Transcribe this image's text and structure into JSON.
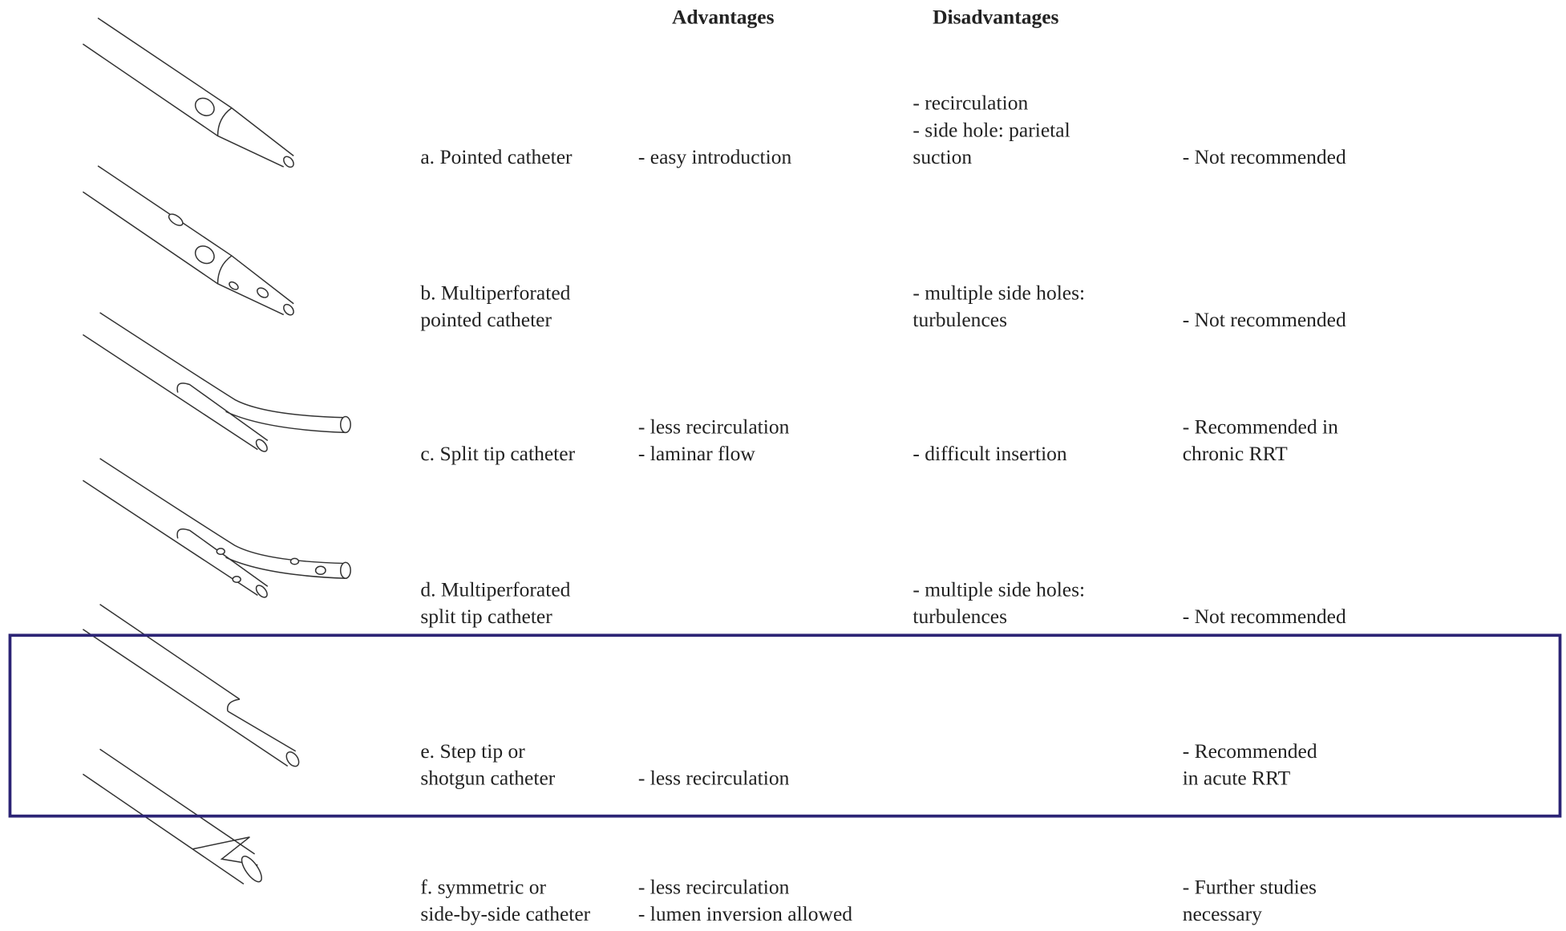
{
  "header": {
    "advantages": "Advantages",
    "disadvantages": "Disadvantages"
  },
  "rows": [
    {
      "name": [
        "a. Pointed catheter"
      ],
      "advantages": [
        "- easy introduction"
      ],
      "disadvantages": [
        "- recirculation",
        "- side hole: parietal",
        "suction"
      ],
      "recommendation": [
        "- Not recommended"
      ]
    },
    {
      "name": [
        "b. Multiperforated",
        "pointed catheter"
      ],
      "advantages": [],
      "disadvantages": [
        "- multiple side holes:",
        "turbulences"
      ],
      "recommendation": [
        "- Not recommended"
      ]
    },
    {
      "name": [
        "c. Split tip catheter"
      ],
      "advantages": [
        "- less recirculation",
        "- laminar flow"
      ],
      "disadvantages": [
        "- difficult insertion"
      ],
      "recommendation": [
        "- Recommended in",
        "chronic RRT"
      ]
    },
    {
      "name": [
        "d. Multiperforated",
        "split tip catheter"
      ],
      "advantages": [],
      "disadvantages": [
        "- multiple side holes:",
        "turbulences"
      ],
      "recommendation": [
        "- Not recommended"
      ]
    },
    {
      "name": [
        "e. Step tip or",
        "shotgun catheter"
      ],
      "advantages": [
        "- less recirculation"
      ],
      "disadvantages": [],
      "recommendation": [
        "- Recommended",
        "in acute RRT"
      ]
    },
    {
      "name": [
        "f. symmetric or",
        "side-by-side catheter"
      ],
      "advantages": [
        "- less recirculation",
        "- lumen inversion allowed"
      ],
      "disadvantages": [],
      "recommendation": [
        "- Further studies",
        "necessary"
      ]
    }
  ]
}
